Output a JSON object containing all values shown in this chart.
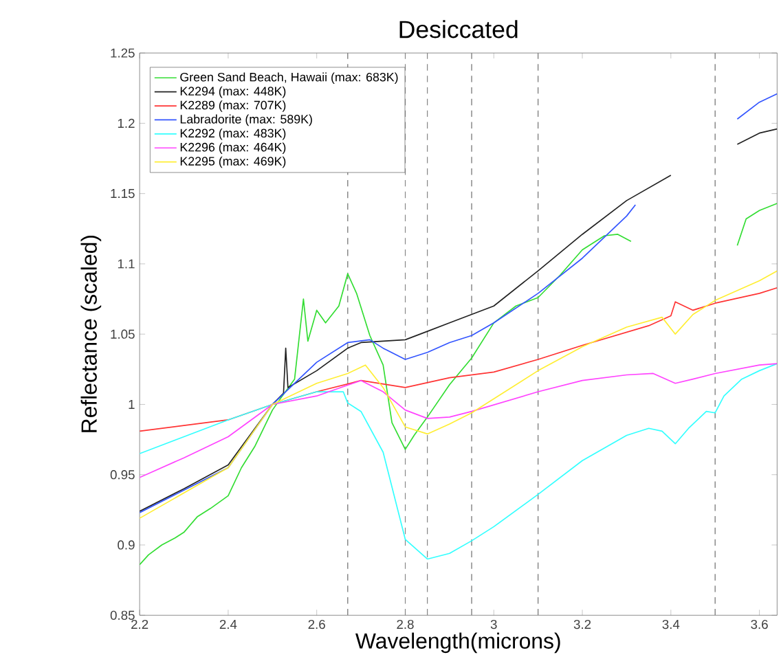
{
  "chart_data": {
    "type": "line",
    "title": "Desiccated",
    "xlabel": "Wavelength(microns)",
    "ylabel": "Reflectance (scaled)",
    "xlim": [
      2.2,
      3.64
    ],
    "ylim": [
      0.85,
      1.25
    ],
    "xticks": [
      2.2,
      2.4,
      2.6,
      2.8,
      3,
      3.2,
      3.4,
      3.6
    ],
    "yticks": [
      0.85,
      0.9,
      0.95,
      1,
      1.05,
      1.1,
      1.15,
      1.2,
      1.25
    ],
    "legend": "top left",
    "marker": "none",
    "line_style": "solid",
    "grid": false,
    "ref_lines": [
      {
        "axis": "x",
        "value": 2.67,
        "color": "#888888",
        "line_style": "dashed"
      },
      {
        "axis": "x",
        "value": 2.8,
        "color": "#888888",
        "line_style": "dashed"
      },
      {
        "axis": "x",
        "value": 2.85,
        "color": "#888888",
        "line_style": "dashed"
      },
      {
        "axis": "x",
        "value": 2.95,
        "color": "#888888",
        "line_style": "dashed"
      },
      {
        "axis": "x",
        "value": 3.1,
        "color": "#888888",
        "line_style": "dashed"
      },
      {
        "axis": "x",
        "value": 3.5,
        "color": "#888888",
        "line_style": "dashed"
      }
    ],
    "series": [
      {
        "name": "Green Sand Beach, Hawaii (max: 683K)",
        "color": "#33dd33",
        "x": [
          2.2,
          2.22,
          2.25,
          2.28,
          2.3,
          2.33,
          2.36,
          2.4,
          2.43,
          2.46,
          2.5,
          2.52,
          2.55,
          2.57,
          2.58,
          2.6,
          2.62,
          2.65,
          2.67,
          2.69,
          2.72,
          2.75,
          2.77,
          2.8,
          2.82,
          2.85,
          2.9,
          2.95,
          3.0,
          3.05,
          3.1,
          3.15,
          3.2,
          3.25,
          3.28,
          3.31,
          3.45,
          3.55,
          3.57,
          3.6,
          3.64
        ],
        "values": [
          0.886,
          0.893,
          0.9,
          0.905,
          0.909,
          0.92,
          0.926,
          0.935,
          0.955,
          0.97,
          0.996,
          1.005,
          1.018,
          1.075,
          1.045,
          1.067,
          1.058,
          1.07,
          1.093,
          1.079,
          1.049,
          1.028,
          0.987,
          0.968,
          0.978,
          0.991,
          1.014,
          1.033,
          1.058,
          1.07,
          1.076,
          1.092,
          1.11,
          1.12,
          1.121,
          1.116,
          null,
          1.113,
          1.132,
          1.138,
          1.143
        ]
      },
      {
        "name": "K2294 (max: 448K)",
        "color": "#222222",
        "x": [
          2.2,
          2.3,
          2.4,
          2.5,
          2.525,
          2.53,
          2.535,
          2.6,
          2.67,
          2.7,
          2.8,
          2.85,
          2.9,
          2.95,
          3.0,
          3.1,
          3.2,
          3.3,
          3.4,
          3.45,
          3.55,
          3.6,
          3.64
        ],
        "values": [
          0.924,
          0.94,
          0.957,
          1.0,
          1.008,
          1.04,
          1.012,
          1.024,
          1.04,
          1.044,
          1.046,
          1.052,
          1.058,
          1.064,
          1.07,
          1.095,
          1.121,
          1.145,
          1.163,
          null,
          1.185,
          1.193,
          1.196
        ]
      },
      {
        "name": "K2289 (max: 707K)",
        "color": "#ff3333",
        "x": [
          2.2,
          2.3,
          2.4,
          2.5,
          2.6,
          2.7,
          2.8,
          2.9,
          3.0,
          3.1,
          3.2,
          3.35,
          3.4,
          3.41,
          3.45,
          3.5,
          3.6,
          3.64
        ],
        "values": [
          0.981,
          0.985,
          0.989,
          1.0,
          1.009,
          1.017,
          1.012,
          1.019,
          1.023,
          1.032,
          1.042,
          1.056,
          1.063,
          1.073,
          1.067,
          1.072,
          1.079,
          1.083
        ]
      },
      {
        "name": "Labradorite (max: 589K)",
        "color": "#3355ff",
        "x": [
          2.2,
          2.3,
          2.4,
          2.5,
          2.6,
          2.67,
          2.72,
          2.75,
          2.8,
          2.85,
          2.9,
          2.95,
          3.0,
          3.1,
          3.2,
          3.3,
          3.32,
          3.45,
          3.55,
          3.6,
          3.64
        ],
        "values": [
          0.923,
          0.939,
          0.955,
          1.0,
          1.03,
          1.044,
          1.046,
          1.04,
          1.032,
          1.037,
          1.044,
          1.049,
          1.058,
          1.079,
          1.104,
          1.134,
          1.142,
          null,
          1.203,
          1.215,
          1.221
        ]
      },
      {
        "name": "K2292 (max: 483K)",
        "color": "#33ffff",
        "x": [
          2.2,
          2.3,
          2.4,
          2.5,
          2.6,
          2.66,
          2.67,
          2.7,
          2.75,
          2.8,
          2.85,
          2.9,
          2.95,
          3.0,
          3.1,
          3.2,
          3.3,
          3.35,
          3.38,
          3.41,
          3.44,
          3.48,
          3.5,
          3.52,
          3.56,
          3.6,
          3.64
        ],
        "values": [
          0.965,
          0.977,
          0.989,
          1.0,
          1.009,
          1.009,
          1.001,
          0.995,
          0.966,
          0.904,
          0.89,
          0.894,
          0.903,
          0.913,
          0.936,
          0.96,
          0.978,
          0.983,
          0.981,
          0.972,
          0.983,
          0.995,
          0.994,
          1.006,
          1.018,
          1.024,
          1.029
        ]
      },
      {
        "name": "K2296 (max: 464K)",
        "color": "#ff44ff",
        "x": [
          2.2,
          2.3,
          2.4,
          2.5,
          2.6,
          2.7,
          2.75,
          2.8,
          2.85,
          2.9,
          2.95,
          3.1,
          3.2,
          3.3,
          3.36,
          3.41,
          3.45,
          3.5,
          3.6,
          3.64
        ],
        "values": [
          0.948,
          0.962,
          0.977,
          1.0,
          1.006,
          1.017,
          1.009,
          0.996,
          0.99,
          0.991,
          0.995,
          1.009,
          1.017,
          1.021,
          1.022,
          1.015,
          1.018,
          1.022,
          1.028,
          1.029
        ]
      },
      {
        "name": "K2295 (max: 469K)",
        "color": "#ffee33",
        "x": [
          2.2,
          2.3,
          2.4,
          2.5,
          2.6,
          2.67,
          2.71,
          2.75,
          2.8,
          2.85,
          2.9,
          2.95,
          3.1,
          3.2,
          3.3,
          3.38,
          3.41,
          3.45,
          3.5,
          3.6,
          3.64
        ],
        "values": [
          0.919,
          0.937,
          0.955,
          1.0,
          1.015,
          1.022,
          1.028,
          1.012,
          0.984,
          0.979,
          0.986,
          0.994,
          1.024,
          1.041,
          1.055,
          1.062,
          1.05,
          1.064,
          1.074,
          1.088,
          1.095
        ]
      }
    ]
  }
}
